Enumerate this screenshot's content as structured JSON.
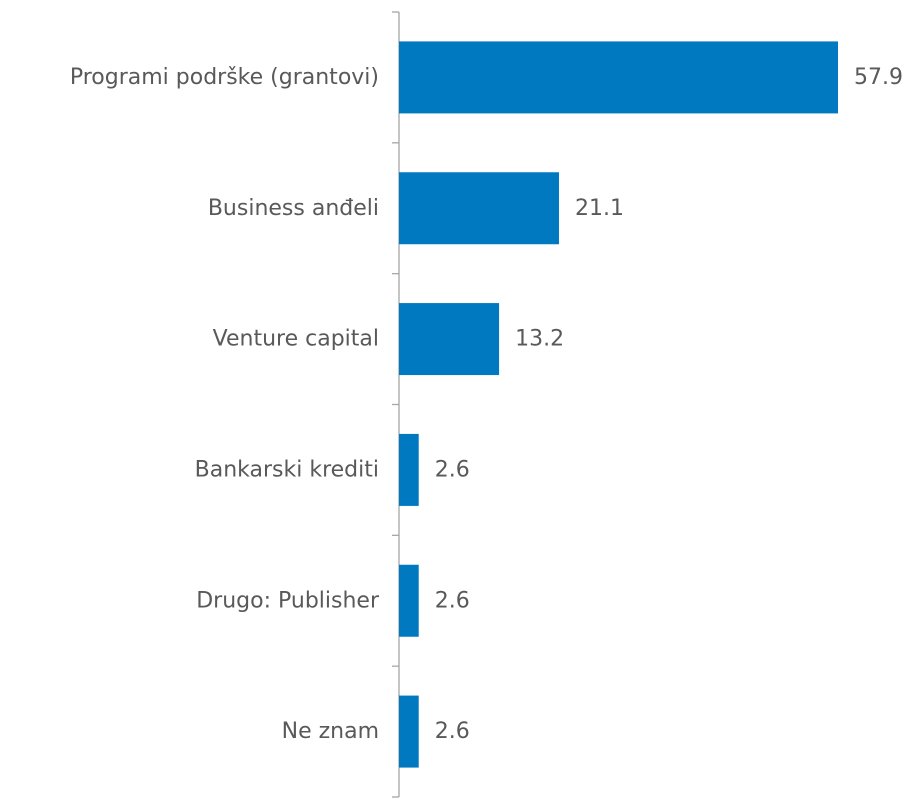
{
  "chart_data": {
    "type": "bar",
    "orientation": "horizontal",
    "categories": [
      "Programi podrške (grantovi)",
      "Business anđeli",
      "Venture capital",
      "Bankarski krediti",
      "Drugo: Publisher",
      "Ne znam"
    ],
    "values": [
      57.9,
      21.1,
      13.2,
      2.6,
      2.6,
      2.6
    ],
    "data_labels": [
      "57.9",
      "21.1",
      "13.2",
      "2.6",
      "2.6",
      "2.6"
    ],
    "title": "",
    "xlabel": "",
    "ylabel": "",
    "xlim": [
      0,
      60
    ],
    "grid": false,
    "legend": "none",
    "colors": {
      "bar": "#0079C1",
      "axis": "#A6A6A6",
      "text": "#595959"
    }
  }
}
